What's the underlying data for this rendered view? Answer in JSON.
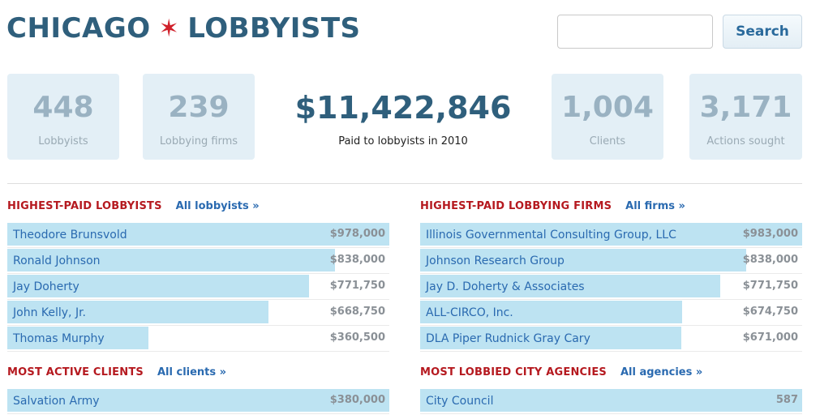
{
  "header": {
    "logo_left": "CHICAGO",
    "logo_star": "✶",
    "logo_right": "LOBBYISTS",
    "search_value": "",
    "search_button": "Search"
  },
  "stats": [
    {
      "value": "448",
      "label": "Lobbyists"
    },
    {
      "value": "239",
      "label": "Lobbying firms"
    },
    {
      "value": "$11,422,846",
      "label": "Paid to lobbyists in 2010"
    },
    {
      "value": "1,004",
      "label": "Clients"
    },
    {
      "value": "3,171",
      "label": "Actions sought"
    }
  ],
  "sections": {
    "lobbyists": {
      "title": "HIGHEST-PAID LOBBYISTS",
      "link": "All lobbyists »",
      "rows": [
        {
          "name": "Theodore Brunsvold",
          "value": "$978,000",
          "amount": 978000
        },
        {
          "name": "Ronald Johnson",
          "value": "$838,000",
          "amount": 838000
        },
        {
          "name": "Jay Doherty",
          "value": "$771,750",
          "amount": 771750
        },
        {
          "name": "John Kelly, Jr.",
          "value": "$668,750",
          "amount": 668750
        },
        {
          "name": "Thomas Murphy",
          "value": "$360,500",
          "amount": 360500
        }
      ]
    },
    "firms": {
      "title": "HIGHEST-PAID LOBBYING FIRMS",
      "link": "All firms »",
      "rows": [
        {
          "name": "Illinois Governmental Consulting Group, LLC",
          "value": "$983,000",
          "amount": 983000
        },
        {
          "name": "Johnson Research Group",
          "value": "$838,000",
          "amount": 838000
        },
        {
          "name": "Jay D. Doherty & Associates",
          "value": "$771,750",
          "amount": 771750
        },
        {
          "name": "ALL-CIRCO, Inc.",
          "value": "$674,750",
          "amount": 674750
        },
        {
          "name": "DLA Piper Rudnick Gray Cary",
          "value": "$671,000",
          "amount": 671000
        }
      ]
    },
    "clients": {
      "title": "MOST ACTIVE CLIENTS",
      "link": "All clients »",
      "rows": [
        {
          "name": "Salvation Army",
          "value": "$380,000",
          "amount": 380000
        }
      ]
    },
    "agencies": {
      "title": "MOST LOBBIED CITY AGENCIES",
      "link": "All agencies »",
      "rows": [
        {
          "name": "City Council",
          "value": "587",
          "amount": 587
        }
      ]
    }
  }
}
